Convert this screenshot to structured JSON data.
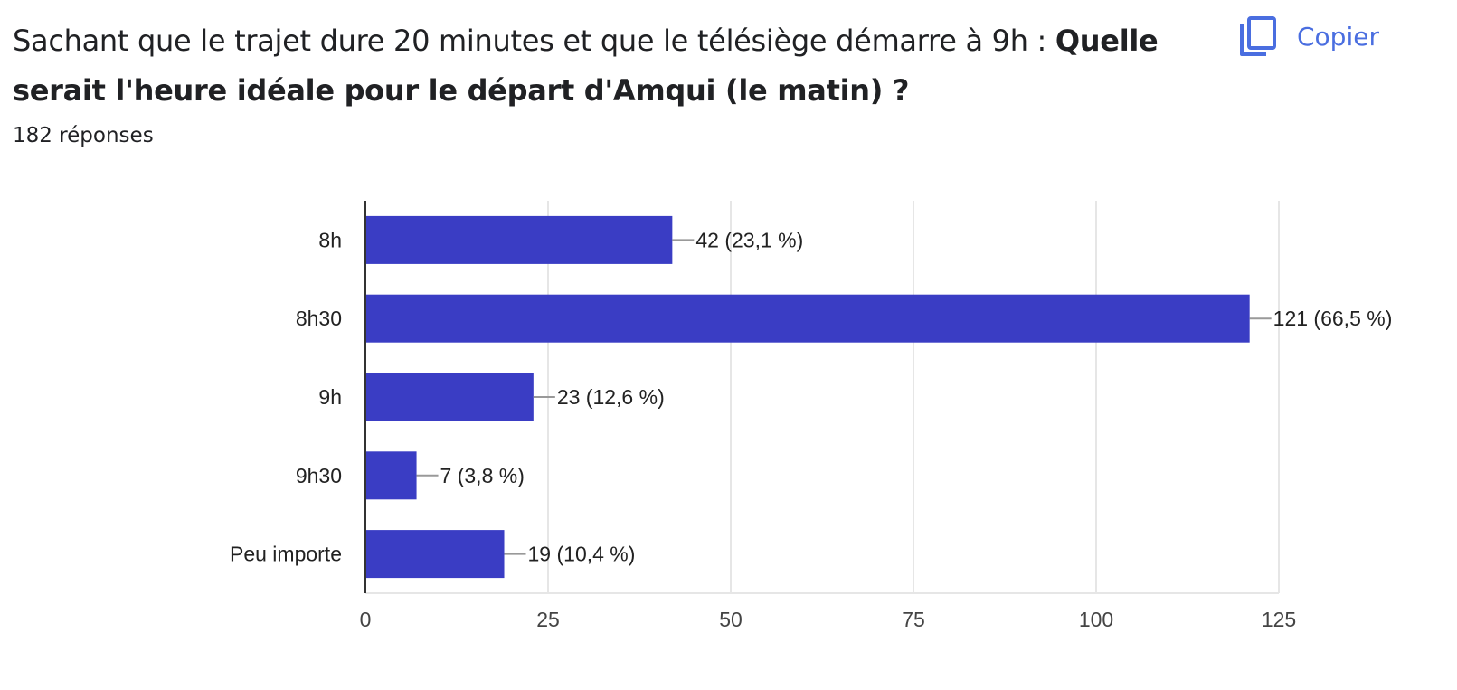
{
  "header": {
    "question_regular": "Sachant que le trajet dure 20 minutes et que le télésiège démarre à 9h : ",
    "question_bold": "Quelle serait l'heure idéale pour le départ d'Amqui (le matin) ?",
    "responses": "182 réponses",
    "copy_label": "Copier",
    "copy_icon": "copy-icon"
  },
  "colors": {
    "bar": "#3a3dc4",
    "grid": "#e6e6e6",
    "axis": "#333333",
    "leader": "#999999",
    "accent": "#4a6ee0"
  },
  "chart_data": {
    "type": "bar",
    "orientation": "horizontal",
    "categories": [
      "8h",
      "8h30",
      "9h",
      "9h30",
      "Peu importe"
    ],
    "values": [
      42,
      121,
      23,
      7,
      19
    ],
    "data_labels": [
      "42 (23,1 %)",
      "121 (66,5 %)",
      "23 (12,6 %)",
      "7 (3,8 %)",
      "19 (10,4 %)"
    ],
    "xlim": [
      0,
      125
    ],
    "xticks": [
      0,
      25,
      50,
      75,
      100,
      125
    ],
    "grid": true,
    "legend": "none"
  }
}
